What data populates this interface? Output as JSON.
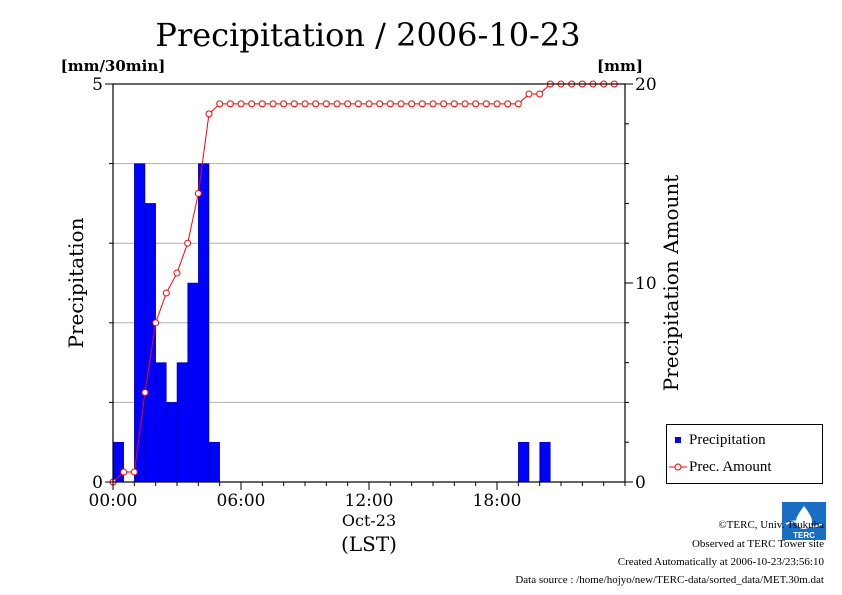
{
  "chart_data": {
    "type": "bar+line",
    "title": "Precipitation / 2006-10-23",
    "left_axis": {
      "label": "Precipitation",
      "unit": "[mm/30min]",
      "range": [
        0,
        5
      ],
      "ticks": [
        "0",
        "5"
      ]
    },
    "right_axis": {
      "label": "Precipitation Amount",
      "unit": "[mm]",
      "range": [
        0,
        20
      ],
      "ticks": [
        "0",
        "10",
        "20"
      ]
    },
    "x_axis": {
      "ticks": [
        "00:00",
        "06:00",
        "12:00",
        "18:00"
      ],
      "date": "Oct-23",
      "label": "(LST)",
      "range_hours": [
        0,
        24
      ]
    },
    "series": [
      {
        "name": "Precipitation",
        "type": "bar",
        "color": "#0000ff",
        "values": [
          0.5,
          0,
          4.0,
          3.5,
          1.5,
          1.0,
          1.5,
          2.5,
          4.0,
          0.5,
          0,
          0,
          0,
          0,
          0,
          0,
          0,
          0,
          0,
          0,
          0,
          0,
          0,
          0,
          0,
          0,
          0,
          0,
          0,
          0,
          0,
          0,
          0,
          0,
          0,
          0,
          0,
          0,
          0.5,
          0,
          0.5,
          0,
          0,
          0,
          0,
          0,
          0,
          0
        ]
      },
      {
        "name": "Prec. Amount",
        "type": "line",
        "color": "#ff0000",
        "values": [
          0,
          0.5,
          0.5,
          4.5,
          8.0,
          9.5,
          10.5,
          12.0,
          14.5,
          18.5,
          19.0,
          19.0,
          19.0,
          19.0,
          19.0,
          19.0,
          19.0,
          19.0,
          19.0,
          19.0,
          19.0,
          19.0,
          19.0,
          19.0,
          19.0,
          19.0,
          19.0,
          19.0,
          19.0,
          19.0,
          19.0,
          19.0,
          19.0,
          19.0,
          19.0,
          19.0,
          19.0,
          19.0,
          19.0,
          19.5,
          19.5,
          20.0,
          20.0,
          20.0,
          20.0,
          20.0,
          20.0,
          20.0
        ]
      }
    ],
    "grid": true,
    "legend_position": "bottom-right, outside plot"
  },
  "legend": {
    "precip_label": "Precipitation",
    "amount_label": "Prec. Amount"
  },
  "footer": {
    "copyright": "©TERC, Univ. Tsukuba",
    "observed": "Observed at TERC Tower site",
    "created": "Created Automatically at 2006-10-23/23:56:10",
    "source": "Data source : /home/hojyo/new/TERC-data/sorted_data/MET.30m.dat"
  },
  "logo_text": "TERC",
  "colors": {
    "bar": "#0000ff",
    "line": "#ff0000",
    "logo": "#1a6fc4"
  }
}
